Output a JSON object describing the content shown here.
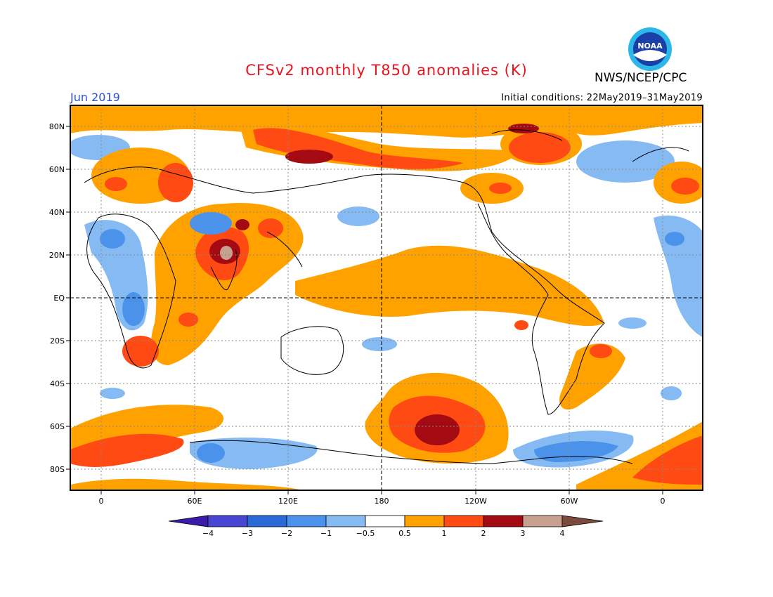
{
  "header": {
    "title": "CFSv2 monthly T850 anomalies (K)",
    "agency": "NWS/NCEP/CPC",
    "logo_text": "NOAA",
    "month": "Jun 2019",
    "initial_conditions": "Initial conditions: 22May2019–31May2019"
  },
  "axes": {
    "lat_labels": [
      "80N",
      "60N",
      "40N",
      "20N",
      "EQ",
      "20S",
      "40S",
      "60S",
      "80S"
    ],
    "lon_labels": [
      "0",
      "60E",
      "120E",
      "180",
      "120W",
      "60W",
      "0"
    ]
  },
  "colorbar": {
    "labels": [
      "−4",
      "−3",
      "−2",
      "−1",
      "−0.5",
      "0.5",
      "1",
      "2",
      "3",
      "4"
    ],
    "colors": [
      "#3a1ca8",
      "#4646d2",
      "#2a6ad8",
      "#4b93ea",
      "#85baf2",
      "#ffffff",
      "#ffa200",
      "#ff4a14",
      "#a40a12",
      "#c8a090",
      "#7a4a3c"
    ]
  },
  "palette": {
    "warm1": "#ffa200",
    "warm2": "#ff4a14",
    "warm3": "#a40a12",
    "warm4": "#c8a090",
    "cool1": "#85baf2",
    "cool2": "#4b93ea",
    "cool3": "#2a6ad8",
    "title_color": "#e8141e",
    "month_color": "#2a4fd6"
  }
}
